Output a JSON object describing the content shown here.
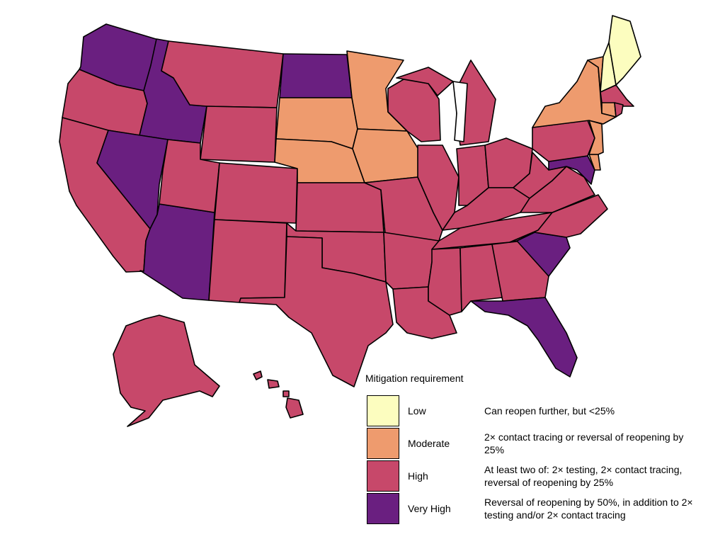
{
  "legend": {
    "title": "Mitigation requirement",
    "levels": [
      {
        "name": "Low",
        "color": "#fcfdbf",
        "description": "Can reopen further, but <25%"
      },
      {
        "name": "Moderate",
        "color": "#ee9b6e",
        "description": "2× contact tracing or reversal of reopening by 25%"
      },
      {
        "name": "High",
        "color": "#c7486a",
        "description": "At least two of: 2× testing, 2× contact tracing, reversal of reopening by 25%"
      },
      {
        "name": "Very High",
        "color": "#6a1f80",
        "description": "Reversal of reopening by 50%, in addition to 2× testing and/or 2× contact tracing"
      }
    ]
  },
  "states": {
    "WA": "Very High",
    "ID": "Very High",
    "NV": "Very High",
    "AZ": "Very High",
    "ND": "Very High",
    "SC": "Very High",
    "FL": "Very High",
    "MD": "Very High",
    "MN": "Moderate",
    "SD": "Moderate",
    "NE": "Moderate",
    "IA": "Moderate",
    "NY": "Moderate",
    "NJ": "Moderate",
    "VT": "Moderate",
    "CT": "Moderate",
    "DE": "Moderate",
    "ME": "Low",
    "NH": "Low",
    "OR": "High",
    "CA": "High",
    "MT": "High",
    "WY": "High",
    "UT": "High",
    "CO": "High",
    "NM": "High",
    "TX": "High",
    "KS": "High",
    "OK": "High",
    "MO": "High",
    "AR": "High",
    "LA": "High",
    "WI": "High",
    "IL": "High",
    "MI": "High",
    "IN": "High",
    "OH": "High",
    "KY": "High",
    "TN": "High",
    "MS": "High",
    "AL": "High",
    "GA": "High",
    "NC": "High",
    "VA": "High",
    "WV": "High",
    "PA": "High",
    "MA": "High",
    "RI": "High",
    "AK": "High",
    "HI": "High"
  }
}
